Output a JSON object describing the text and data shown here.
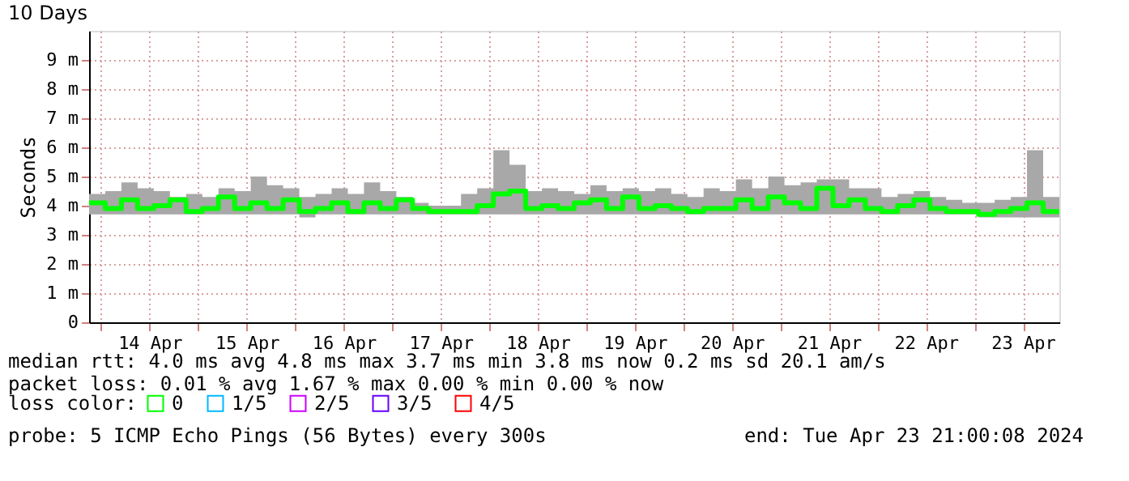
{
  "chart_data": {
    "type": "step",
    "title": "10 Days",
    "ylabel": "Seconds",
    "legend_title": "loss color:",
    "legend": "bottom left",
    "grid": true,
    "xlim": [
      "2024-04-13T21:00",
      "2024-04-23T21:00"
    ],
    "xticks": [
      {
        "value": "2024-04-14T00:00",
        "label": null
      },
      {
        "value": "2024-04-14T12:00",
        "label": "14 Apr"
      },
      {
        "value": "2024-04-15T00:00",
        "label": null
      },
      {
        "value": "2024-04-15T12:00",
        "label": "15 Apr"
      },
      {
        "value": "2024-04-16T00:00",
        "label": null
      },
      {
        "value": "2024-04-16T12:00",
        "label": "16 Apr"
      },
      {
        "value": "2024-04-17T00:00",
        "label": null
      },
      {
        "value": "2024-04-17T12:00",
        "label": "17 Apr"
      },
      {
        "value": "2024-04-18T00:00",
        "label": null
      },
      {
        "value": "2024-04-18T12:00",
        "label": "18 Apr"
      },
      {
        "value": "2024-04-19T00:00",
        "label": null
      },
      {
        "value": "2024-04-19T12:00",
        "label": "19 Apr"
      },
      {
        "value": "2024-04-20T00:00",
        "label": null
      },
      {
        "value": "2024-04-20T12:00",
        "label": "20 Apr"
      },
      {
        "value": "2024-04-21T00:00",
        "label": null
      },
      {
        "value": "2024-04-21T12:00",
        "label": "21 Apr"
      },
      {
        "value": "2024-04-22T00:00",
        "label": null
      },
      {
        "value": "2024-04-22T12:00",
        "label": "22 Apr"
      },
      {
        "value": "2024-04-23T00:00",
        "label": null
      },
      {
        "value": "2024-04-23T12:00",
        "label": "23 Apr"
      }
    ],
    "ylim": [
      0,
      10
    ],
    "yticks": [
      0,
      {
        "value": 1,
        "label": "1 m"
      },
      {
        "value": 2,
        "label": "2 m"
      },
      {
        "value": 3,
        "label": "3 m"
      },
      {
        "value": 4,
        "label": "4 m"
      },
      {
        "value": 5,
        "label": "5 m"
      },
      {
        "value": 6,
        "label": "6 m"
      },
      {
        "value": 7,
        "label": "7 m"
      },
      {
        "value": 8,
        "label": "8 m"
      },
      {
        "value": 9,
        "label": "9 m"
      }
    ],
    "x": [
      "2024-04-13T21:00",
      "2024-04-14T01:00",
      "2024-04-14T05:00",
      "2024-04-14T09:00",
      "2024-04-14T13:00",
      "2024-04-14T17:00",
      "2024-04-14T21:00",
      "2024-04-15T01:00",
      "2024-04-15T05:00",
      "2024-04-15T09:00",
      "2024-04-15T13:00",
      "2024-04-15T17:00",
      "2024-04-15T21:00",
      "2024-04-16T01:00",
      "2024-04-16T05:00",
      "2024-04-16T09:00",
      "2024-04-16T13:00",
      "2024-04-16T17:00",
      "2024-04-16T21:00",
      "2024-04-17T01:00",
      "2024-04-17T05:00",
      "2024-04-17T09:00",
      "2024-04-17T13:00",
      "2024-04-17T17:00",
      "2024-04-17T21:00",
      "2024-04-18T01:00",
      "2024-04-18T05:00",
      "2024-04-18T09:00",
      "2024-04-18T13:00",
      "2024-04-18T17:00",
      "2024-04-18T21:00",
      "2024-04-19T01:00",
      "2024-04-19T05:00",
      "2024-04-19T09:00",
      "2024-04-19T13:00",
      "2024-04-19T17:00",
      "2024-04-19T21:00",
      "2024-04-20T01:00",
      "2024-04-20T05:00",
      "2024-04-20T09:00",
      "2024-04-20T13:00",
      "2024-04-20T17:00",
      "2024-04-20T21:00",
      "2024-04-21T01:00",
      "2024-04-21T05:00",
      "2024-04-21T09:00",
      "2024-04-21T13:00",
      "2024-04-21T17:00",
      "2024-04-21T21:00",
      "2024-04-22T01:00",
      "2024-04-22T05:00",
      "2024-04-22T09:00",
      "2024-04-22T13:00",
      "2024-04-22T17:00",
      "2024-04-22T21:00",
      "2024-04-23T01:00",
      "2024-04-23T05:00",
      "2024-04-23T09:00",
      "2024-04-23T13:00",
      "2024-04-23T17:00",
      "2024-04-23T21:00"
    ],
    "series": [
      {
        "name": "0",
        "color": "#00ff00",
        "values": [
          4.1,
          3.9,
          4.2,
          3.9,
          4.0,
          4.2,
          3.8,
          3.9,
          4.3,
          3.9,
          4.1,
          3.9,
          4.2,
          3.8,
          3.9,
          4.1,
          3.8,
          4.1,
          3.9,
          4.2,
          3.9,
          3.8,
          3.8,
          3.8,
          4.0,
          4.4,
          4.5,
          3.9,
          4.0,
          3.9,
          4.1,
          4.2,
          3.9,
          4.3,
          3.9,
          4.0,
          3.9,
          3.8,
          3.9,
          3.9,
          4.2,
          3.9,
          4.3,
          4.1,
          3.9,
          4.6,
          4.0,
          4.2,
          3.9,
          3.8,
          4.0,
          4.2,
          3.9,
          3.8,
          3.8,
          3.7,
          3.8,
          3.9,
          4.1,
          3.8,
          3.8
        ],
        "lower": [
          3.7,
          3.7,
          3.7,
          3.7,
          3.7,
          3.7,
          3.7,
          3.7,
          3.7,
          3.7,
          3.7,
          3.7,
          3.7,
          3.6,
          3.7,
          3.7,
          3.7,
          3.7,
          3.7,
          3.7,
          3.7,
          3.7,
          3.7,
          3.7,
          3.7,
          3.7,
          3.7,
          3.7,
          3.7,
          3.7,
          3.7,
          3.7,
          3.7,
          3.7,
          3.7,
          3.7,
          3.7,
          3.7,
          3.7,
          3.7,
          3.7,
          3.7,
          3.7,
          3.7,
          3.7,
          3.7,
          3.7,
          3.7,
          3.7,
          3.7,
          3.7,
          3.7,
          3.7,
          3.7,
          3.7,
          3.6,
          3.6,
          3.6,
          3.6,
          3.6,
          3.7
        ],
        "upper": [
          4.4,
          4.5,
          4.8,
          4.6,
          4.5,
          4.3,
          4.4,
          4.3,
          4.6,
          4.5,
          5.0,
          4.7,
          4.6,
          4.3,
          4.4,
          4.6,
          4.4,
          4.8,
          4.5,
          4.3,
          4.1,
          4.0,
          4.0,
          4.4,
          4.6,
          5.9,
          5.4,
          4.5,
          4.6,
          4.5,
          4.4,
          4.7,
          4.5,
          4.6,
          4.5,
          4.6,
          4.4,
          4.3,
          4.6,
          4.5,
          4.9,
          4.6,
          5.0,
          4.7,
          4.8,
          4.9,
          4.9,
          4.6,
          4.6,
          4.3,
          4.4,
          4.5,
          4.3,
          4.2,
          4.1,
          4.1,
          4.2,
          4.3,
          5.9,
          4.3,
          4.5
        ]
      },
      {
        "name": "1/5",
        "color": "#00b8ff",
        "values": [
          null,
          null,
          null,
          null,
          null,
          null,
          null,
          null,
          null,
          null,
          null,
          null,
          null,
          null,
          null,
          null,
          null,
          null,
          null,
          null,
          null,
          null,
          null,
          null,
          null,
          null,
          null,
          null,
          null,
          null,
          null,
          null,
          null,
          null,
          null,
          null,
          null,
          null,
          null,
          null,
          null,
          null,
          null,
          null,
          null,
          null,
          null,
          null,
          null,
          null,
          null,
          null,
          null,
          null,
          null,
          null,
          null,
          null,
          null,
          null,
          null
        ]
      },
      {
        "name": "2/5",
        "color": "#cc00ff",
        "values": [
          null,
          null,
          null,
          null,
          null,
          null,
          null,
          null,
          null,
          null,
          null,
          null,
          null,
          null,
          null,
          null,
          null,
          null,
          null,
          null,
          null,
          null,
          null,
          null,
          null,
          null,
          null,
          null,
          null,
          null,
          null,
          null,
          null,
          null,
          null,
          null,
          null,
          null,
          null,
          null,
          null,
          null,
          null,
          null,
          null,
          null,
          null,
          null,
          null,
          null,
          null,
          null,
          null,
          null,
          null,
          null,
          null,
          null,
          null,
          null,
          null
        ]
      },
      {
        "name": "3/5",
        "color": "#6600ff",
        "values": [
          null,
          null,
          null,
          null,
          null,
          null,
          null,
          null,
          null,
          null,
          null,
          null,
          null,
          null,
          null,
          null,
          null,
          null,
          null,
          null,
          null,
          null,
          null,
          null,
          null,
          null,
          null,
          null,
          null,
          null,
          null,
          null,
          null,
          null,
          null,
          null,
          null,
          null,
          null,
          null,
          null,
          null,
          null,
          null,
          null,
          null,
          null,
          null,
          null,
          null,
          null,
          null,
          null,
          null,
          null,
          null,
          null,
          null,
          null,
          null,
          null
        ]
      },
      {
        "name": "4/5",
        "color": "#ff0000",
        "values": [
          null,
          null,
          null,
          null,
          null,
          null,
          null,
          null,
          null,
          null,
          null,
          null,
          null,
          null,
          null,
          null,
          null,
          null,
          null,
          null,
          null,
          null,
          null,
          null,
          null,
          null,
          null,
          null,
          null,
          null,
          null,
          null,
          null,
          null,
          null,
          null,
          null,
          null,
          null,
          null,
          null,
          null,
          null,
          null,
          null,
          null,
          null,
          null,
          null,
          null,
          null,
          null,
          null,
          null,
          null,
          null,
          null,
          null,
          null,
          null,
          null
        ]
      }
    ],
    "annotations": [
      "median rtt:  4.0 ms avg  4.8 ms max  3.7 ms min  3.8 ms now  0.2 ms sd  20.1   am/s",
      "packet loss: 0.01 % avg  1.67 % max  0.00 % min  0.00 % now",
      "probe:       5 ICMP Echo Pings (56 Bytes) every 300s",
      "end: Tue Apr 23 21:00:08 2024"
    ]
  }
}
